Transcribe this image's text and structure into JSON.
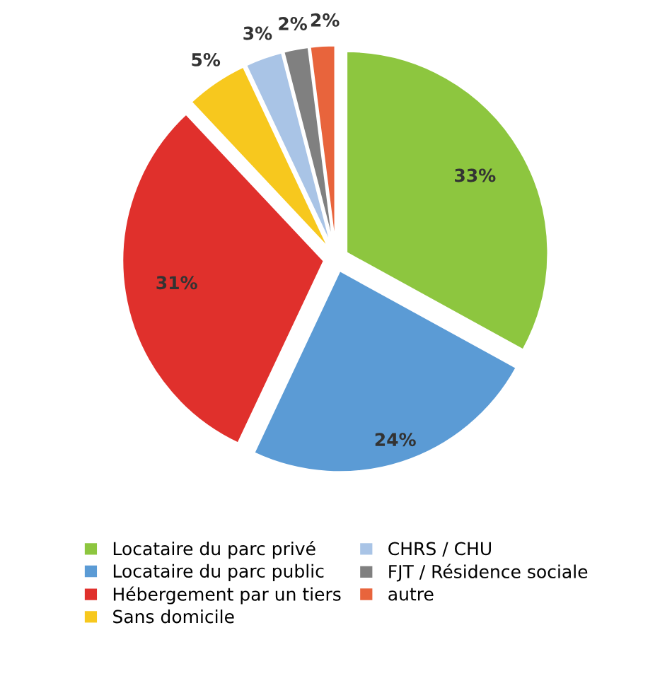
{
  "chart_data": {
    "type": "pie",
    "categories": [
      "Locataire du parc privé",
      "Locataire du parc public",
      "Hébergement par un tiers",
      "Sans domicile",
      "CHRS / CHU",
      "FJT / Résidence sociale",
      "autre"
    ],
    "values": [
      33,
      24,
      31,
      5,
      3,
      2,
      2
    ],
    "colors": [
      "#8dc63f",
      "#5b9bd5",
      "#e0302c",
      "#f7c81e",
      "#a9c4e6",
      "#808080",
      "#e8643c"
    ],
    "value_labels": [
      "33%",
      "24%",
      "31%",
      "5%",
      "3%",
      "2%",
      "2%"
    ],
    "legend": "bottom"
  }
}
